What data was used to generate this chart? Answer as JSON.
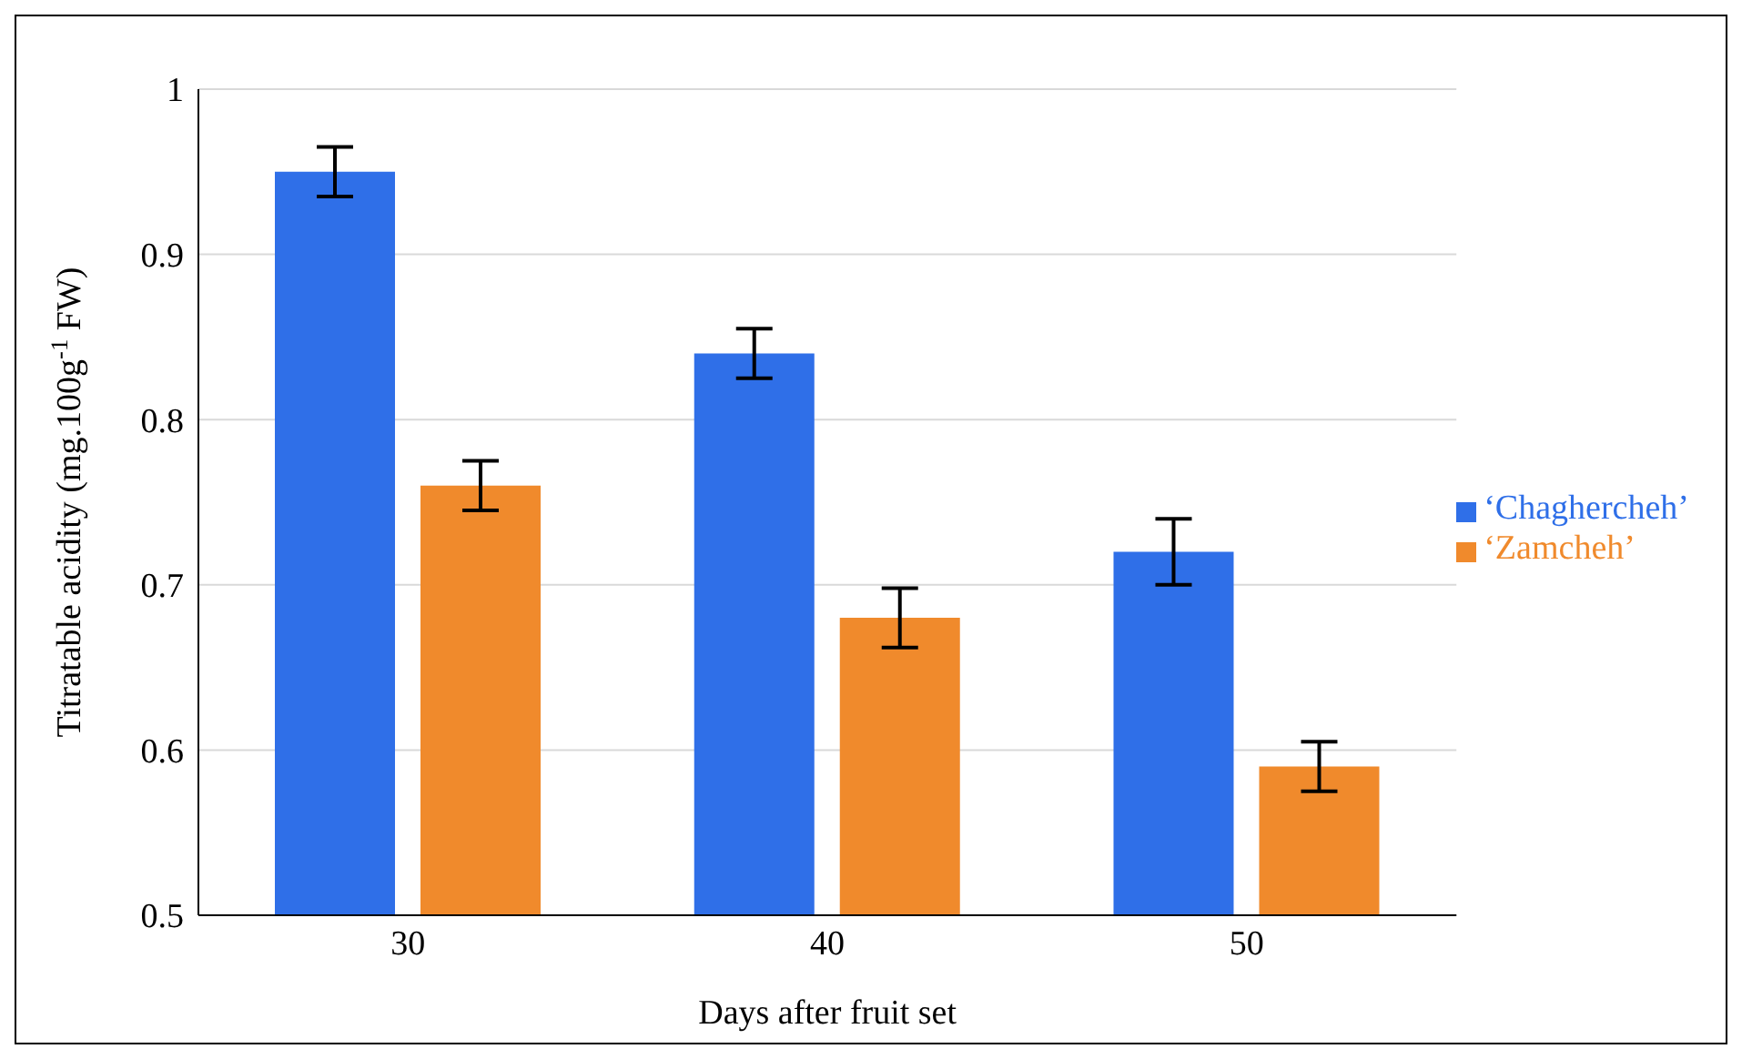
{
  "chart_data": {
    "type": "bar",
    "xlabel": "Days after fruit set",
    "ylabel": "Titratable acidity (mg.100g$^{-1}$ FW)",
    "categories": [
      "30",
      "40",
      "50"
    ],
    "series": [
      {
        "name": "‘Chaghercheh’",
        "color": "#2f6fe8",
        "values": [
          0.95,
          0.84,
          0.72
        ],
        "errors": [
          0.015,
          0.015,
          0.02
        ]
      },
      {
        "name": "‘Zamcheh’",
        "color": "#f08a2c",
        "values": [
          0.76,
          0.68,
          0.59
        ],
        "errors": [
          0.015,
          0.018,
          0.015
        ]
      }
    ],
    "ylim": [
      0.5,
      1
    ],
    "yticks": [
      0.5,
      0.6,
      0.7,
      0.8,
      0.9,
      1
    ],
    "grid": "y",
    "legend": "right"
  }
}
